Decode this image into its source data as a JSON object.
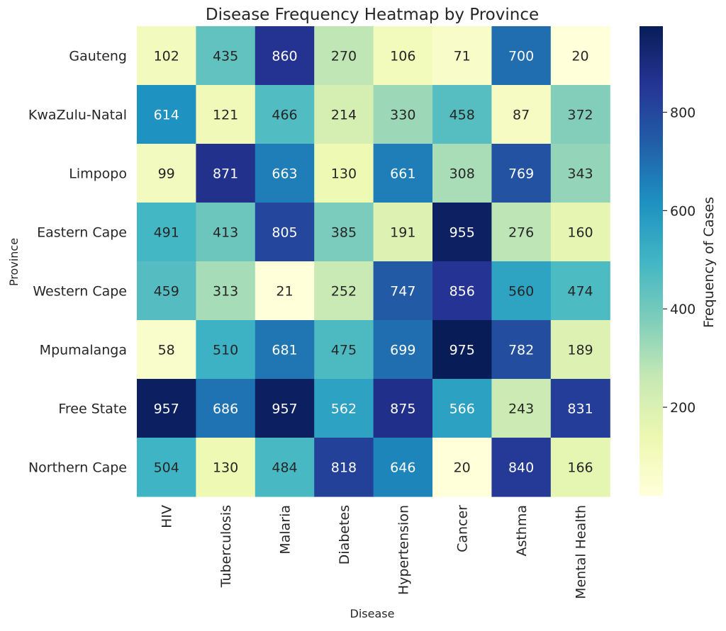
{
  "chart_data": {
    "type": "heatmap",
    "title": "Disease Frequency Heatmap by Province",
    "xlabel": "Disease",
    "ylabel": "Province",
    "x_categories": [
      "HIV",
      "Tuberculosis",
      "Malaria",
      "Diabetes",
      "Hypertension",
      "Cancer",
      "Asthma",
      "Mental Health"
    ],
    "y_categories": [
      "Gauteng",
      "KwaZulu-Natal",
      "Limpopo",
      "Eastern Cape",
      "Western Cape",
      "Mpumalanga",
      "Free State",
      "Northern Cape"
    ],
    "values": [
      [
        102,
        435,
        860,
        270,
        106,
        71,
        700,
        20
      ],
      [
        614,
        121,
        466,
        214,
        330,
        458,
        87,
        372
      ],
      [
        99,
        871,
        663,
        130,
        661,
        308,
        769,
        343
      ],
      [
        491,
        413,
        805,
        385,
        191,
        955,
        276,
        160
      ],
      [
        459,
        313,
        21,
        252,
        747,
        856,
        560,
        474
      ],
      [
        58,
        510,
        681,
        475,
        699,
        975,
        782,
        189
      ],
      [
        957,
        686,
        957,
        562,
        875,
        566,
        243,
        831
      ],
      [
        504,
        130,
        484,
        818,
        646,
        20,
        840,
        166
      ]
    ],
    "colormap": "YlGnBu",
    "colorbar": {
      "label": "Frequency of Cases",
      "ticks": [
        200,
        400,
        600,
        800
      ],
      "range": [
        20,
        975
      ]
    },
    "annotated": true,
    "grid": false
  }
}
